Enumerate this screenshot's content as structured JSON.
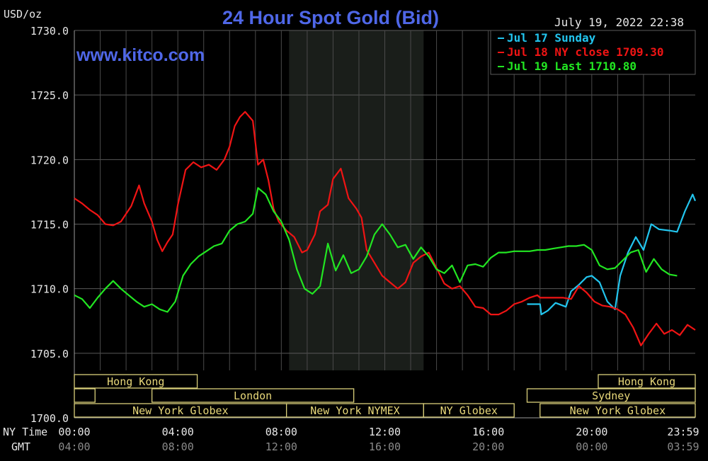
{
  "chart_data": {
    "type": "line",
    "title": "24 Hour Spot Gold (Bid)",
    "unit_label": "USD/oz",
    "watermark": "www.kitco.com",
    "timestamp": "July 19, 2022 22:38",
    "ylim": [
      1700,
      1730
    ],
    "y_ticks": [
      "1730.0",
      "1725.0",
      "1720.0",
      "1715.0",
      "1710.0",
      "1705.0",
      "1700.0"
    ],
    "xlim": [
      0,
      24
    ],
    "x_ticks": [
      {
        "x": 0,
        "ny": "00:00",
        "gmt": "04:00"
      },
      {
        "x": 4,
        "ny": "04:00",
        "gmt": "08:00"
      },
      {
        "x": 8,
        "ny": "08:00",
        "gmt": "12:00"
      },
      {
        "x": 12,
        "ny": "12:00",
        "gmt": "16:00"
      },
      {
        "x": 16,
        "ny": "16:00",
        "gmt": "20:00"
      },
      {
        "x": 20,
        "ny": "20:00",
        "gmt": "00:00"
      },
      {
        "x": 24,
        "ny": "23:59",
        "gmt": "03:59"
      }
    ],
    "x_row_labels": {
      "ny": "NY Time",
      "gmt": "GMT"
    },
    "grid": true,
    "legend_position": "top-right",
    "shaded_range": [
      8.3,
      13.5
    ],
    "series": [
      {
        "name": "Jul 17 Sunday",
        "color": "#22c5ee",
        "x": [
          17.5,
          18.0,
          18.05,
          18.3,
          18.6,
          19.0,
          19.2,
          19.5,
          19.8,
          20.0,
          20.3,
          20.6,
          20.9,
          21.1,
          21.4,
          21.7,
          22.0,
          22.3,
          22.6,
          23.0,
          23.3,
          23.6,
          23.9,
          24.0
        ],
        "y": [
          1708.8,
          1708.8,
          1708.0,
          1708.3,
          1708.9,
          1708.6,
          1709.8,
          1710.3,
          1710.9,
          1711.0,
          1710.5,
          1709.0,
          1708.4,
          1711.0,
          1712.8,
          1714.0,
          1713.0,
          1715.0,
          1714.6,
          1714.5,
          1714.4,
          1716.0,
          1717.3,
          1716.8
        ]
      },
      {
        "name": "Jul 18 NY close 1709.30",
        "color": "#f01414",
        "x": [
          0.0,
          0.3,
          0.6,
          0.9,
          1.2,
          1.5,
          1.8,
          2.0,
          2.2,
          2.5,
          2.7,
          3.0,
          3.2,
          3.4,
          3.6,
          3.8,
          4.0,
          4.3,
          4.6,
          4.9,
          5.2,
          5.5,
          5.8,
          6.0,
          6.2,
          6.4,
          6.6,
          6.9,
          7.1,
          7.3,
          7.5,
          7.7,
          7.9,
          8.2,
          8.5,
          8.8,
          9.0,
          9.3,
          9.5,
          9.8,
          10.0,
          10.3,
          10.6,
          10.9,
          11.1,
          11.3,
          11.6,
          11.9,
          12.2,
          12.5,
          12.8,
          13.1,
          13.4,
          13.7,
          14.0,
          14.3,
          14.6,
          14.9,
          15.2,
          15.5,
          15.8,
          16.1,
          16.4,
          16.7,
          17.0,
          17.3,
          17.6,
          17.9,
          18.0,
          18.3,
          18.6,
          18.9,
          19.2,
          19.5,
          19.8,
          20.1,
          20.4,
          20.7,
          21.0,
          21.3,
          21.6,
          21.9,
          22.2,
          22.5,
          22.8,
          23.1,
          23.4,
          23.7,
          24.0
        ],
        "y": [
          1717.0,
          1716.6,
          1716.1,
          1715.7,
          1715.0,
          1714.9,
          1715.2,
          1715.8,
          1716.4,
          1718.0,
          1716.6,
          1715.2,
          1713.8,
          1712.9,
          1713.6,
          1714.2,
          1716.5,
          1719.2,
          1719.8,
          1719.4,
          1719.6,
          1719.2,
          1720.0,
          1721.0,
          1722.6,
          1723.3,
          1723.7,
          1723.0,
          1719.6,
          1720.0,
          1718.4,
          1716.2,
          1715.2,
          1714.5,
          1714.0,
          1712.8,
          1713.0,
          1714.2,
          1716.0,
          1716.5,
          1718.5,
          1719.3,
          1717.0,
          1716.2,
          1715.5,
          1713.0,
          1712.0,
          1711.0,
          1710.5,
          1710.0,
          1710.5,
          1712.0,
          1712.5,
          1712.8,
          1711.6,
          1710.4,
          1710.0,
          1710.2,
          1709.5,
          1708.6,
          1708.5,
          1708.0,
          1708.0,
          1708.3,
          1708.8,
          1709.0,
          1709.3,
          1709.5,
          1709.3,
          1709.3,
          1709.3,
          1709.3,
          1709.2,
          1710.2,
          1709.7,
          1709.0,
          1708.7,
          1708.6,
          1708.4,
          1708.0,
          1707.0,
          1705.6,
          1706.5,
          1707.3,
          1706.5,
          1706.8,
          1706.4,
          1707.2,
          1706.8
        ]
      },
      {
        "name": "Jul 19 Last 1710.80",
        "color": "#22e622",
        "x": [
          0.0,
          0.3,
          0.6,
          0.9,
          1.2,
          1.5,
          1.8,
          2.1,
          2.4,
          2.7,
          3.0,
          3.3,
          3.6,
          3.9,
          4.2,
          4.5,
          4.8,
          5.1,
          5.4,
          5.7,
          6.0,
          6.3,
          6.6,
          6.9,
          7.1,
          7.4,
          7.7,
          8.0,
          8.3,
          8.6,
          8.9,
          9.2,
          9.5,
          9.8,
          10.1,
          10.4,
          10.7,
          11.0,
          11.3,
          11.6,
          11.9,
          12.2,
          12.5,
          12.8,
          13.1,
          13.4,
          13.7,
          14.0,
          14.3,
          14.6,
          14.9,
          15.2,
          15.5,
          15.8,
          16.1,
          16.4,
          16.7,
          17.0,
          17.3,
          17.6,
          17.9,
          18.2,
          18.5,
          18.8,
          19.1,
          19.4,
          19.7,
          20.0,
          20.3,
          20.6,
          20.9,
          21.2,
          21.5,
          21.8,
          22.1,
          22.4,
          22.7,
          23.0,
          23.3
        ],
        "y": [
          1709.5,
          1709.2,
          1708.5,
          1709.3,
          1710.0,
          1710.6,
          1710.0,
          1709.5,
          1709.0,
          1708.6,
          1708.8,
          1708.4,
          1708.2,
          1709.0,
          1711.0,
          1711.9,
          1712.5,
          1712.9,
          1713.3,
          1713.5,
          1714.5,
          1715.0,
          1715.2,
          1715.8,
          1717.8,
          1717.3,
          1716.0,
          1715.2,
          1713.8,
          1711.5,
          1710.0,
          1709.6,
          1710.2,
          1713.5,
          1711.4,
          1712.6,
          1711.2,
          1711.5,
          1712.5,
          1714.2,
          1715.0,
          1714.2,
          1713.2,
          1713.4,
          1712.3,
          1713.2,
          1712.5,
          1711.5,
          1711.2,
          1711.8,
          1710.5,
          1711.8,
          1711.9,
          1711.7,
          1712.4,
          1712.8,
          1712.8,
          1712.9,
          1712.9,
          1712.9,
          1713.0,
          1713.0,
          1713.1,
          1713.2,
          1713.3,
          1713.3,
          1713.4,
          1713.0,
          1711.8,
          1711.5,
          1711.6,
          1712.2,
          1712.8,
          1713.0,
          1711.3,
          1712.3,
          1711.5,
          1711.1,
          1711.0
        ]
      }
    ],
    "sessions": [
      {
        "label": "Hong Kong",
        "start": 0.0,
        "end": 4.75,
        "row": 0
      },
      {
        "label": "Hong Kong",
        "start": 20.25,
        "end": 24.0,
        "row": 0
      },
      {
        "label": "",
        "start": 0.0,
        "end": 0.8,
        "row": 1
      },
      {
        "label": "London",
        "start": 3.0,
        "end": 10.8,
        "row": 1
      },
      {
        "label": "Sydney",
        "start": 17.5,
        "end": 24.0,
        "row": 1
      },
      {
        "label": "New York Globex",
        "start": 0.0,
        "end": 8.2,
        "row": 2
      },
      {
        "label": "New York NYMEX",
        "start": 8.2,
        "end": 13.5,
        "row": 2
      },
      {
        "label": "NY Globex",
        "start": 13.5,
        "end": 17.0,
        "row": 2
      },
      {
        "label": "New York Globex",
        "start": 18.0,
        "end": 24.0,
        "row": 2
      }
    ]
  }
}
